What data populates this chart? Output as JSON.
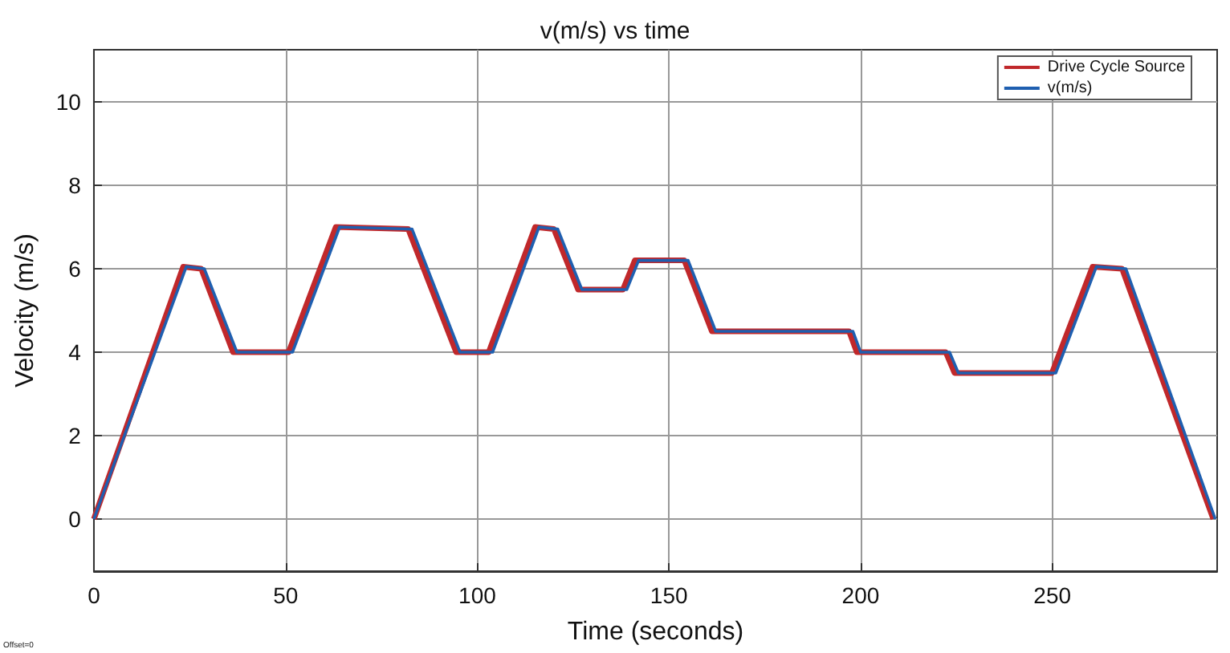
{
  "chart_data": {
    "type": "line",
    "title": "v(m/s) vs time",
    "xlabel": "Time (seconds)",
    "ylabel": "Velocity (m/s)",
    "annotations": [
      "Offset=0"
    ],
    "xlim": [
      0,
      293
    ],
    "xticks": [
      0,
      50,
      100,
      150,
      200,
      250
    ],
    "ylim": [
      -1.25,
      11.25
    ],
    "yticks": [
      0,
      2,
      4,
      6,
      8,
      10
    ],
    "grid": true,
    "legend": "top right",
    "marker": "none",
    "line_style": "solid",
    "x": [
      0,
      24.1,
      28.8,
      37.3,
      51.8,
      64.1,
      83,
      95.5,
      104,
      116.1,
      121,
      127.3,
      139,
      142.1,
      155,
      162.2,
      198,
      200,
      223.2,
      225.5,
      250.9,
      261.5,
      269.2,
      292.5
    ],
    "series": [
      {
        "name": "Drive Cycle Source",
        "color": "#c0282b",
        "x": [
          0,
          23.3,
          28,
          36.3,
          50.8,
          63.1,
          82,
          94.5,
          103,
          115.1,
          120,
          126.3,
          138,
          141.1,
          154,
          161.2,
          197,
          199,
          222.2,
          224.5,
          249.9,
          260.5,
          268.2,
          292
        ],
        "values": [
          0,
          6.05,
          6.0,
          4.0,
          4.0,
          7.0,
          6.95,
          4.0,
          4.0,
          7.0,
          6.95,
          5.5,
          5.5,
          6.2,
          6.2,
          4.5,
          4.5,
          4.0,
          4.0,
          3.5,
          3.5,
          6.05,
          6.0,
          0
        ]
      },
      {
        "name": "v(m/s)",
        "color": "#1f5fb0",
        "values": [
          0,
          6.05,
          6.0,
          4.0,
          4.0,
          7.0,
          6.95,
          4.0,
          4.0,
          7.0,
          6.95,
          5.5,
          5.5,
          6.2,
          6.2,
          4.5,
          4.5,
          4.0,
          4.0,
          3.5,
          3.5,
          6.05,
          6.0,
          0
        ]
      }
    ]
  }
}
